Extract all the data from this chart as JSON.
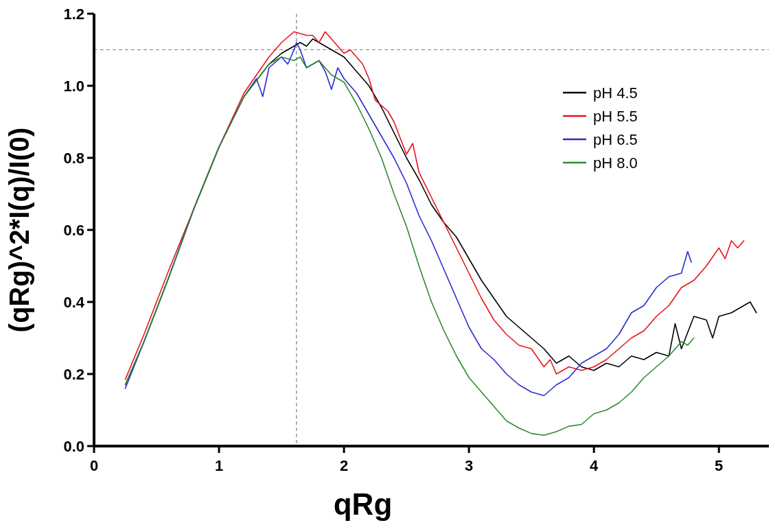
{
  "chart_data": {
    "type": "line",
    "xlabel": "qRg",
    "ylabel": "(qRg)^2*I(q)/I(0)",
    "xlim": [
      0,
      5.4
    ],
    "ylim": [
      0,
      1.2
    ],
    "xticks": [
      0,
      1,
      2,
      3,
      4,
      5
    ],
    "yticks": [
      {
        "value": 0,
        "label": "0.0"
      },
      {
        "value": 0.2,
        "label": "0.2"
      },
      {
        "value": 0.4,
        "label": "0.4"
      },
      {
        "value": 0.6,
        "label": "0.6"
      },
      {
        "value": 0.8,
        "label": "0.8"
      },
      {
        "value": 1,
        "label": "1.0"
      },
      {
        "value": 1.2,
        "label": "1.2"
      }
    ],
    "grid": false,
    "legend": "top right",
    "line_style": "solid",
    "marker": "none",
    "ref_lines": [
      {
        "axis": "x",
        "value": 1.62,
        "color": "#808080",
        "line_style": "dashed"
      },
      {
        "axis": "y",
        "value": 1.1,
        "color": "#808080",
        "line_style": "dashed"
      }
    ],
    "series": [
      {
        "name": "pH 4.5",
        "color": "#000000",
        "x": [
          0.25,
          0.4,
          0.6,
          0.8,
          1.0,
          1.2,
          1.4,
          1.5,
          1.6,
          1.65,
          1.7,
          1.75,
          1.85,
          2.0,
          2.1,
          2.2,
          2.3,
          2.4,
          2.5,
          2.6,
          2.7,
          2.8,
          2.9,
          3.0,
          3.1,
          3.2,
          3.3,
          3.4,
          3.5,
          3.6,
          3.7,
          3.8,
          3.9,
          4.0,
          4.1,
          4.2,
          4.3,
          4.4,
          4.5,
          4.6,
          4.65,
          4.7,
          4.8,
          4.9,
          4.95,
          5.0,
          5.1,
          5.2,
          5.25,
          5.3
        ],
        "values": [
          0.17,
          0.29,
          0.47,
          0.66,
          0.83,
          0.97,
          1.06,
          1.09,
          1.11,
          1.12,
          1.11,
          1.13,
          1.11,
          1.08,
          1.04,
          1.0,
          0.94,
          0.87,
          0.8,
          0.74,
          0.67,
          0.62,
          0.58,
          0.52,
          0.46,
          0.41,
          0.36,
          0.33,
          0.3,
          0.27,
          0.23,
          0.25,
          0.22,
          0.21,
          0.23,
          0.22,
          0.25,
          0.24,
          0.26,
          0.25,
          0.34,
          0.27,
          0.36,
          0.35,
          0.3,
          0.36,
          0.37,
          0.39,
          0.4,
          0.37
        ]
      },
      {
        "name": "pH 5.5",
        "color": "#e8141c",
        "x": [
          0.25,
          0.4,
          0.6,
          0.8,
          1.0,
          1.2,
          1.4,
          1.5,
          1.6,
          1.7,
          1.75,
          1.8,
          1.85,
          1.9,
          2.0,
          2.05,
          2.15,
          2.2,
          2.25,
          2.35,
          2.4,
          2.5,
          2.55,
          2.6,
          2.7,
          2.8,
          2.9,
          3.0,
          3.1,
          3.2,
          3.3,
          3.4,
          3.5,
          3.6,
          3.65,
          3.7,
          3.8,
          3.9,
          4.0,
          4.1,
          4.2,
          4.3,
          4.4,
          4.5,
          4.6,
          4.7,
          4.8,
          4.9,
          5.0,
          5.05,
          5.1,
          5.15,
          5.2
        ],
        "values": [
          0.185,
          0.31,
          0.49,
          0.66,
          0.83,
          0.98,
          1.08,
          1.12,
          1.15,
          1.14,
          1.14,
          1.12,
          1.15,
          1.13,
          1.09,
          1.1,
          1.06,
          1.02,
          0.96,
          0.93,
          0.9,
          0.81,
          0.84,
          0.76,
          0.69,
          0.62,
          0.55,
          0.48,
          0.41,
          0.35,
          0.31,
          0.28,
          0.27,
          0.22,
          0.24,
          0.2,
          0.22,
          0.21,
          0.22,
          0.24,
          0.27,
          0.3,
          0.32,
          0.36,
          0.39,
          0.44,
          0.46,
          0.5,
          0.55,
          0.52,
          0.57,
          0.55,
          0.57
        ]
      },
      {
        "name": "pH 6.5",
        "color": "#2b2bd6",
        "x": [
          0.25,
          0.4,
          0.6,
          0.8,
          1.0,
          1.2,
          1.3,
          1.35,
          1.4,
          1.5,
          1.55,
          1.6,
          1.62,
          1.65,
          1.7,
          1.8,
          1.85,
          1.9,
          1.95,
          2.0,
          2.1,
          2.2,
          2.3,
          2.4,
          2.5,
          2.6,
          2.7,
          2.8,
          2.9,
          3.0,
          3.1,
          3.2,
          3.3,
          3.4,
          3.5,
          3.6,
          3.7,
          3.8,
          3.9,
          4.0,
          4.1,
          4.2,
          4.3,
          4.4,
          4.5,
          4.6,
          4.7,
          4.75,
          4.78
        ],
        "values": [
          0.16,
          0.29,
          0.47,
          0.66,
          0.83,
          0.97,
          1.02,
          0.97,
          1.05,
          1.08,
          1.06,
          1.1,
          1.12,
          1.1,
          1.05,
          1.07,
          1.04,
          0.99,
          1.05,
          1.02,
          0.98,
          0.92,
          0.86,
          0.8,
          0.73,
          0.64,
          0.57,
          0.49,
          0.41,
          0.33,
          0.27,
          0.24,
          0.2,
          0.17,
          0.15,
          0.14,
          0.17,
          0.19,
          0.23,
          0.25,
          0.27,
          0.31,
          0.37,
          0.39,
          0.44,
          0.47,
          0.48,
          0.54,
          0.51
        ]
      },
      {
        "name": "pH 8.0",
        "color": "#2e8b2e",
        "x": [
          0.25,
          0.4,
          0.6,
          0.8,
          1.0,
          1.2,
          1.4,
          1.5,
          1.6,
          1.65,
          1.7,
          1.8,
          1.9,
          2.0,
          2.1,
          2.2,
          2.3,
          2.4,
          2.5,
          2.6,
          2.7,
          2.8,
          2.9,
          3.0,
          3.1,
          3.2,
          3.3,
          3.4,
          3.5,
          3.6,
          3.7,
          3.8,
          3.9,
          4.0,
          4.1,
          4.2,
          4.3,
          4.4,
          4.5,
          4.6,
          4.7,
          4.75,
          4.8
        ],
        "values": [
          0.17,
          0.29,
          0.47,
          0.66,
          0.83,
          0.97,
          1.06,
          1.08,
          1.07,
          1.08,
          1.05,
          1.07,
          1.03,
          1.01,
          0.95,
          0.88,
          0.8,
          0.7,
          0.61,
          0.5,
          0.4,
          0.32,
          0.25,
          0.19,
          0.15,
          0.11,
          0.07,
          0.05,
          0.035,
          0.03,
          0.04,
          0.055,
          0.06,
          0.09,
          0.1,
          0.12,
          0.15,
          0.19,
          0.22,
          0.25,
          0.29,
          0.28,
          0.3
        ]
      }
    ]
  }
}
